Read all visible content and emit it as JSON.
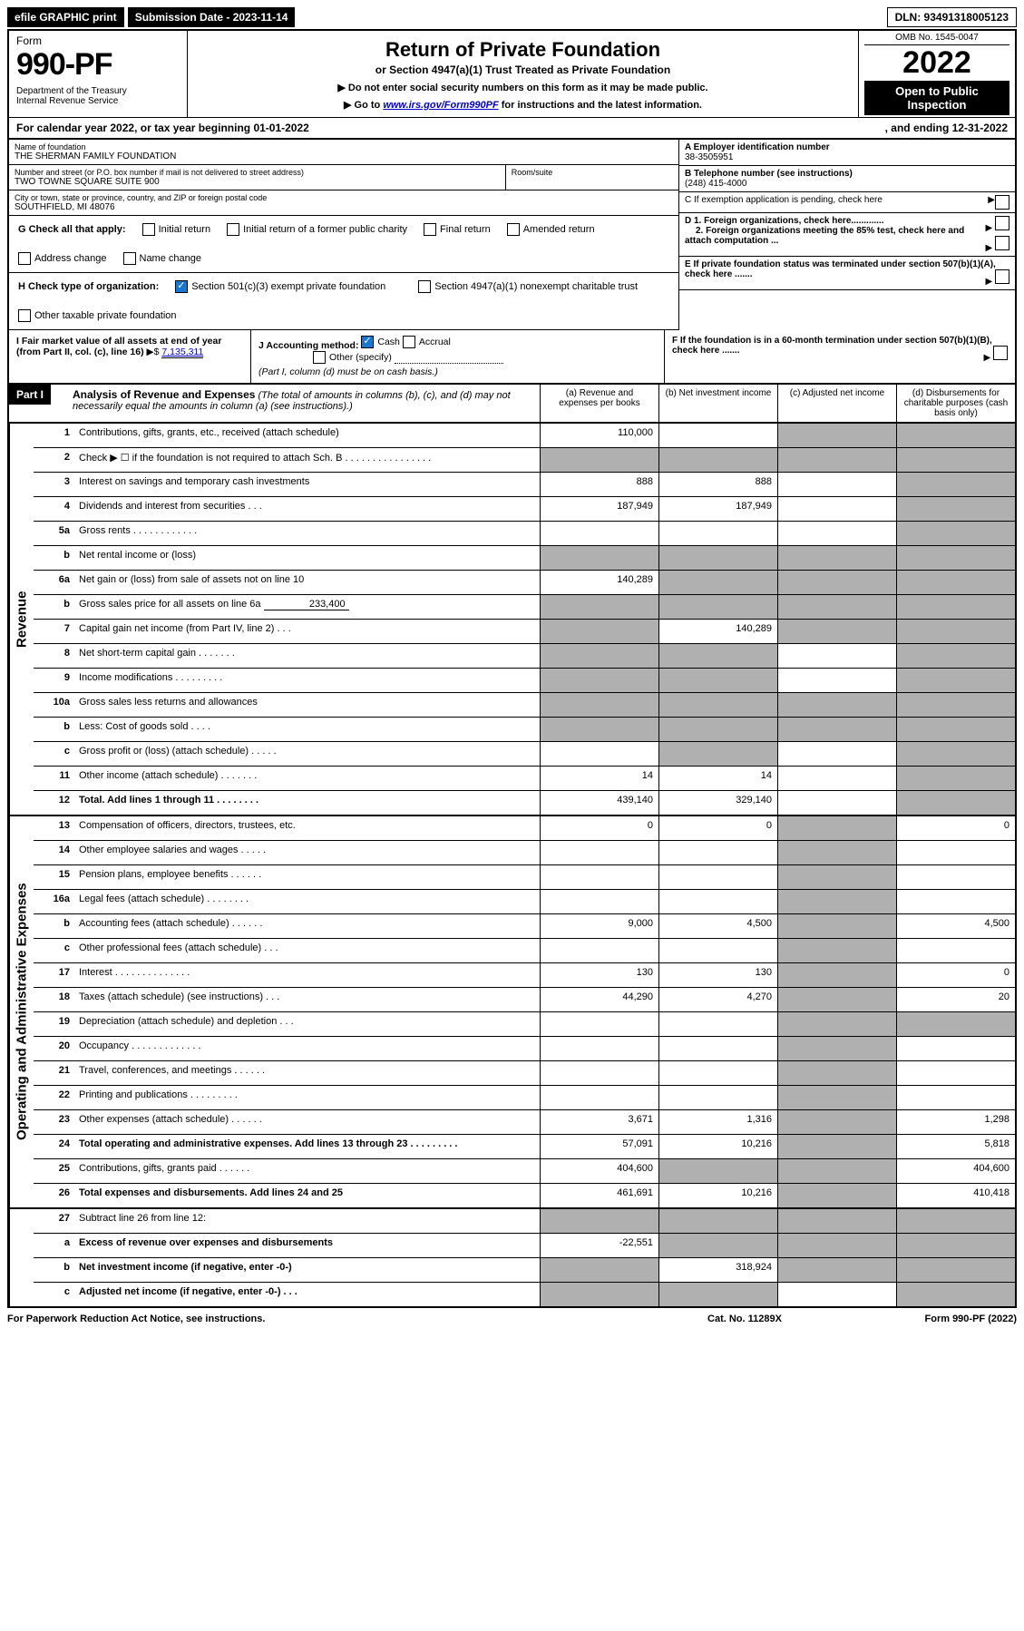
{
  "top": {
    "efile": "efile GRAPHIC print",
    "submission_label": "Submission Date - 2023-11-14",
    "dln": "DLN: 93491318005123"
  },
  "header": {
    "form_word": "Form",
    "form_num": "990-PF",
    "dept": "Department of the Treasury\nInternal Revenue Service",
    "title": "Return of Private Foundation",
    "subtitle": "or Section 4947(a)(1) Trust Treated as Private Foundation",
    "instr1": "▶ Do not enter social security numbers on this form as it may be made public.",
    "instr2_pre": "▶ Go to ",
    "instr2_link": "www.irs.gov/Form990PF",
    "instr2_post": " for instructions and the latest information.",
    "omb": "OMB No. 1545-0047",
    "year": "2022",
    "open": "Open to Public Inspection"
  },
  "cal": {
    "text_a": "For calendar year 2022, or tax year beginning 01-01-2022",
    "text_b": ", and ending 12-31-2022"
  },
  "info": {
    "name_label": "Name of foundation",
    "name": "THE SHERMAN FAMILY FOUNDATION",
    "addr_label": "Number and street (or P.O. box number if mail is not delivered to street address)",
    "addr": "TWO TOWNE SQUARE SUITE 900",
    "room_label": "Room/suite",
    "city_label": "City or town, state or province, country, and ZIP or foreign postal code",
    "city": "SOUTHFIELD, MI  48076",
    "ein_label": "A Employer identification number",
    "ein": "38-3505951",
    "phone_label": "B Telephone number (see instructions)",
    "phone": "(248) 415-4000",
    "c_label": "C If exemption application is pending, check here",
    "d1": "D 1. Foreign organizations, check here.............",
    "d2": "2. Foreign organizations meeting the 85% test, check here and attach computation ...",
    "e": "E  If private foundation status was terminated under section 507(b)(1)(A), check here .......",
    "f": "F  If the foundation is in a 60-month termination under section 507(b)(1)(B), check here ......."
  },
  "g": {
    "label": "G Check all that apply:",
    "opts": [
      "Initial return",
      "Initial return of a former public charity",
      "Final return",
      "Amended return",
      "Address change",
      "Name change"
    ]
  },
  "h": {
    "label": "H Check type of organization:",
    "opt1": "Section 501(c)(3) exempt private foundation",
    "opt2": "Section 4947(a)(1) nonexempt charitable trust",
    "opt3": "Other taxable private foundation"
  },
  "i": {
    "label": "I Fair market value of all assets at end of year (from Part II, col. (c), line 16)",
    "arrow": "▶$",
    "value": "7,135,311"
  },
  "j": {
    "label": "J Accounting method:",
    "cash": "Cash",
    "accrual": "Accrual",
    "other": "Other (specify)",
    "note": "(Part I, column (d) must be on cash basis.)"
  },
  "part1": {
    "tag": "Part I",
    "title": "Analysis of Revenue and Expenses",
    "note": "(The total of amounts in columns (b), (c), and (d) may not necessarily equal the amounts in column (a) (see instructions).)",
    "col_a": "(a)   Revenue and expenses per books",
    "col_b": "(b)   Net investment income",
    "col_c": "(c)   Adjusted net income",
    "col_d": "(d)   Disbursements for charitable purposes (cash basis only)"
  },
  "side_labels": {
    "rev": "Revenue",
    "exp": "Operating and Administrative Expenses"
  },
  "rows_rev": [
    {
      "n": "1",
      "d": "Contributions, gifts, grants, etc., received (attach schedule)",
      "a": "110,000",
      "b": "",
      "c_shade": true,
      "d_shade": true
    },
    {
      "n": "2",
      "d": "Check ▶ ☐ if the foundation is not required to attach Sch. B   .  .  .  .  .  .  .  .  .  .  .  .  .  .  .  .",
      "a_shade": true,
      "b_shade": true,
      "c_shade": true,
      "d_shade": true
    },
    {
      "n": "3",
      "d": "Interest on savings and temporary cash investments",
      "a": "888",
      "b": "888",
      "c": "",
      "d_shade": true
    },
    {
      "n": "4",
      "d": "Dividends and interest from securities   .   .   .",
      "a": "187,949",
      "b": "187,949",
      "c": "",
      "d_shade": true
    },
    {
      "n": "5a",
      "d": "Gross rents   .   .   .   .   .   .   .   .   .   .   .   .",
      "a": "",
      "b": "",
      "c": "",
      "d_shade": true
    },
    {
      "n": "b",
      "d": "Net rental income or (loss)  ",
      "a_shade": true,
      "b_shade": true,
      "c_shade": true,
      "d_shade": true
    },
    {
      "n": "6a",
      "d": "Net gain or (loss) from sale of assets not on line 10",
      "a": "140,289",
      "b_shade": true,
      "c_shade": true,
      "d_shade": true
    },
    {
      "n": "b",
      "d": "Gross sales price for all assets on line 6a",
      "inline_val": "233,400",
      "a_shade": true,
      "b_shade": true,
      "c_shade": true,
      "d_shade": true
    },
    {
      "n": "7",
      "d": "Capital gain net income (from Part IV, line 2)   .   .   .",
      "a_shade": true,
      "b": "140,289",
      "c_shade": true,
      "d_shade": true
    },
    {
      "n": "8",
      "d": "Net short-term capital gain   .   .   .   .   .   .   .",
      "a_shade": true,
      "b_shade": true,
      "c": "",
      "d_shade": true
    },
    {
      "n": "9",
      "d": "Income modifications  .   .   .   .   .   .   .   .   .",
      "a_shade": true,
      "b_shade": true,
      "c": "",
      "d_shade": true
    },
    {
      "n": "10a",
      "d": "Gross sales less returns and allowances",
      "a_shade": true,
      "b_shade": true,
      "c_shade": true,
      "d_shade": true
    },
    {
      "n": "b",
      "d": "Less: Cost of goods sold   .   .   .   .",
      "a_shade": true,
      "b_shade": true,
      "c_shade": true,
      "d_shade": true
    },
    {
      "n": "c",
      "d": "Gross profit or (loss) (attach schedule)   .   .   .   .   .",
      "a": "",
      "b_shade": true,
      "c": "",
      "d_shade": true
    },
    {
      "n": "11",
      "d": "Other income (attach schedule)   .   .   .   .   .   .   .",
      "a": "14",
      "b": "14",
      "c": "",
      "d_shade": true
    },
    {
      "n": "12",
      "d": "Total. Add lines 1 through 11   .   .   .   .   .   .   .   .",
      "bold": true,
      "a": "439,140",
      "b": "329,140",
      "c": "",
      "d_shade": true
    }
  ],
  "rows_exp": [
    {
      "n": "13",
      "d": "Compensation of officers, directors, trustees, etc.",
      "a": "0",
      "b": "0",
      "c_shade": true,
      "dd": "0"
    },
    {
      "n": "14",
      "d": "Other employee salaries and wages   .   .   .   .   .",
      "a": "",
      "b": "",
      "c_shade": true,
      "dd": ""
    },
    {
      "n": "15",
      "d": "Pension plans, employee benefits  .   .   .   .   .   .",
      "a": "",
      "b": "",
      "c_shade": true,
      "dd": ""
    },
    {
      "n": "16a",
      "d": "Legal fees (attach schedule) .   .   .   .   .   .   .   .",
      "a": "",
      "b": "",
      "c_shade": true,
      "dd": ""
    },
    {
      "n": "b",
      "d": "Accounting fees (attach schedule) .   .   .   .   .   .",
      "a": "9,000",
      "b": "4,500",
      "c_shade": true,
      "dd": "4,500"
    },
    {
      "n": "c",
      "d": "Other professional fees (attach schedule)   .   .   .",
      "a": "",
      "b": "",
      "c_shade": true,
      "dd": ""
    },
    {
      "n": "17",
      "d": "Interest .   .   .   .   .   .   .   .   .   .   .   .   .   .",
      "a": "130",
      "b": "130",
      "c_shade": true,
      "dd": "0"
    },
    {
      "n": "18",
      "d": "Taxes (attach schedule) (see instructions)   .   .   .",
      "a": "44,290",
      "b": "4,270",
      "c_shade": true,
      "dd": "20"
    },
    {
      "n": "19",
      "d": "Depreciation (attach schedule) and depletion   .   .   .",
      "a": "",
      "b": "",
      "c_shade": true,
      "dd_shade": true
    },
    {
      "n": "20",
      "d": "Occupancy .   .   .   .   .   .   .   .   .   .   .   .   .",
      "a": "",
      "b": "",
      "c_shade": true,
      "dd": ""
    },
    {
      "n": "21",
      "d": "Travel, conferences, and meetings .   .   .   .   .   .",
      "a": "",
      "b": "",
      "c_shade": true,
      "dd": ""
    },
    {
      "n": "22",
      "d": "Printing and publications .   .   .   .   .   .   .   .   .",
      "a": "",
      "b": "",
      "c_shade": true,
      "dd": ""
    },
    {
      "n": "23",
      "d": "Other expenses (attach schedule) .   .   .   .   .   .",
      "a": "3,671",
      "b": "1,316",
      "c_shade": true,
      "dd": "1,298"
    },
    {
      "n": "24",
      "d": "Total operating and administrative expenses. Add lines 13 through 23   .   .   .   .   .   .   .   .   .",
      "bold": true,
      "a": "57,091",
      "b": "10,216",
      "c_shade": true,
      "dd": "5,818"
    },
    {
      "n": "25",
      "d": "Contributions, gifts, grants paid   .   .   .   .   .   .",
      "a": "404,600",
      "b_shade": true,
      "c_shade": true,
      "dd": "404,600"
    },
    {
      "n": "26",
      "d": "Total expenses and disbursements. Add lines 24 and 25",
      "bold": true,
      "a": "461,691",
      "b": "10,216",
      "c_shade": true,
      "dd": "410,418"
    }
  ],
  "rows_bottom": [
    {
      "n": "27",
      "d": "Subtract line 26 from line 12:",
      "a_shade": true,
      "b_shade": true,
      "c_shade": true,
      "d_shade": true
    },
    {
      "n": "a",
      "d": "Excess of revenue over expenses and disbursements",
      "bold": true,
      "a": "-22,551",
      "b_shade": true,
      "c_shade": true,
      "d_shade": true
    },
    {
      "n": "b",
      "d": "Net investment income (if negative, enter -0-)",
      "bold": true,
      "a_shade": true,
      "b": "318,924",
      "c_shade": true,
      "d_shade": true
    },
    {
      "n": "c",
      "d": "Adjusted net income (if negative, enter -0-)   .   .   .",
      "bold": true,
      "a_shade": true,
      "b_shade": true,
      "c": "",
      "d_shade": true
    }
  ],
  "footer": {
    "left": "For Paperwork Reduction Act Notice, see instructions.",
    "mid": "Cat. No. 11289X",
    "right": "Form 990-PF (2022)"
  }
}
